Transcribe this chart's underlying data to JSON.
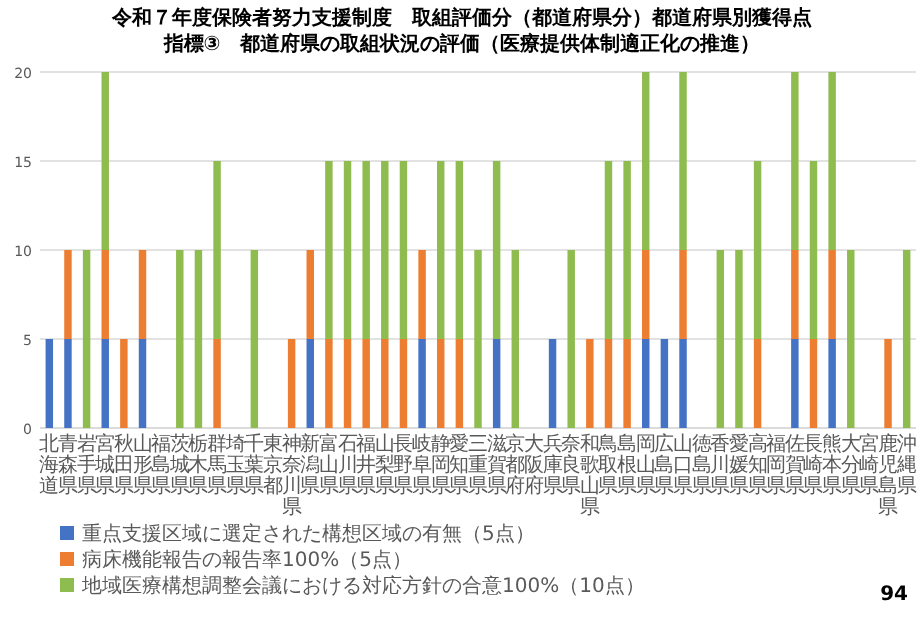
{
  "chart_data": {
    "type": "bar",
    "stacked": true,
    "title": "令和７年度保険者努力支援制度　取組評価分（都道府県分）都道府県別獲得点",
    "subtitle": "指標③　都道府県の取組状況の評価（医療提供体制適正化の推進）",
    "categories": [
      "北海道",
      "青森県",
      "岩手県",
      "宮城県",
      "秋田県",
      "山形県",
      "福島県",
      "茨城県",
      "栃木県",
      "群馬県",
      "埼玉県",
      "千葉県",
      "東京都",
      "神奈川県",
      "新潟県",
      "富山県",
      "石川県",
      "福井県",
      "山梨県",
      "長野県",
      "岐阜県",
      "静岡県",
      "愛知県",
      "三重県",
      "滋賀県",
      "京都府",
      "大阪府",
      "兵庫県",
      "奈良県",
      "和歌山県",
      "鳥取県",
      "島根県",
      "岡山県",
      "広島県",
      "山口県",
      "徳島県",
      "香川県",
      "愛媛県",
      "高知県",
      "福岡県",
      "佐賀県",
      "長崎県",
      "熊本県",
      "大分県",
      "宮崎県",
      "鹿児島県",
      "沖縄県"
    ],
    "series": [
      {
        "name": "重点支援区域に選定された構想区域の有無（5点）",
        "color": "#4472c4",
        "values": [
          5,
          5,
          0,
          5,
          0,
          5,
          0,
          0,
          0,
          0,
          0,
          0,
          0,
          0,
          5,
          0,
          0,
          0,
          0,
          0,
          5,
          0,
          0,
          0,
          5,
          0,
          0,
          5,
          0,
          0,
          0,
          0,
          5,
          5,
          5,
          0,
          0,
          0,
          0,
          0,
          5,
          0,
          5,
          0,
          0,
          0,
          0
        ]
      },
      {
        "name": "病床機能報告の報告率100%（5点）",
        "color": "#ed7d31",
        "values": [
          0,
          5,
          0,
          5,
          5,
          5,
          0,
          0,
          0,
          5,
          0,
          0,
          0,
          5,
          5,
          5,
          5,
          5,
          5,
          5,
          5,
          5,
          5,
          0,
          0,
          0,
          0,
          0,
          0,
          5,
          5,
          5,
          5,
          0,
          5,
          0,
          0,
          0,
          5,
          0,
          5,
          5,
          5,
          0,
          0,
          5,
          0
        ]
      },
      {
        "name": "地域医療構想調整会議における対応方針の合意100%（10点）",
        "color": "#8fbc4f",
        "values": [
          0,
          0,
          10,
          10,
          0,
          0,
          0,
          10,
          10,
          10,
          0,
          10,
          0,
          0,
          0,
          10,
          10,
          10,
          10,
          10,
          0,
          10,
          10,
          10,
          10,
          10,
          0,
          0,
          10,
          0,
          10,
          10,
          10,
          0,
          10,
          0,
          10,
          10,
          10,
          0,
          10,
          10,
          10,
          10,
          0,
          0,
          10
        ]
      }
    ],
    "ylim": [
      0,
      20
    ],
    "yticks": [
      0,
      5,
      10,
      15,
      20
    ],
    "grid": "y",
    "legend": "bottom",
    "annotations": [
      "94"
    ]
  }
}
